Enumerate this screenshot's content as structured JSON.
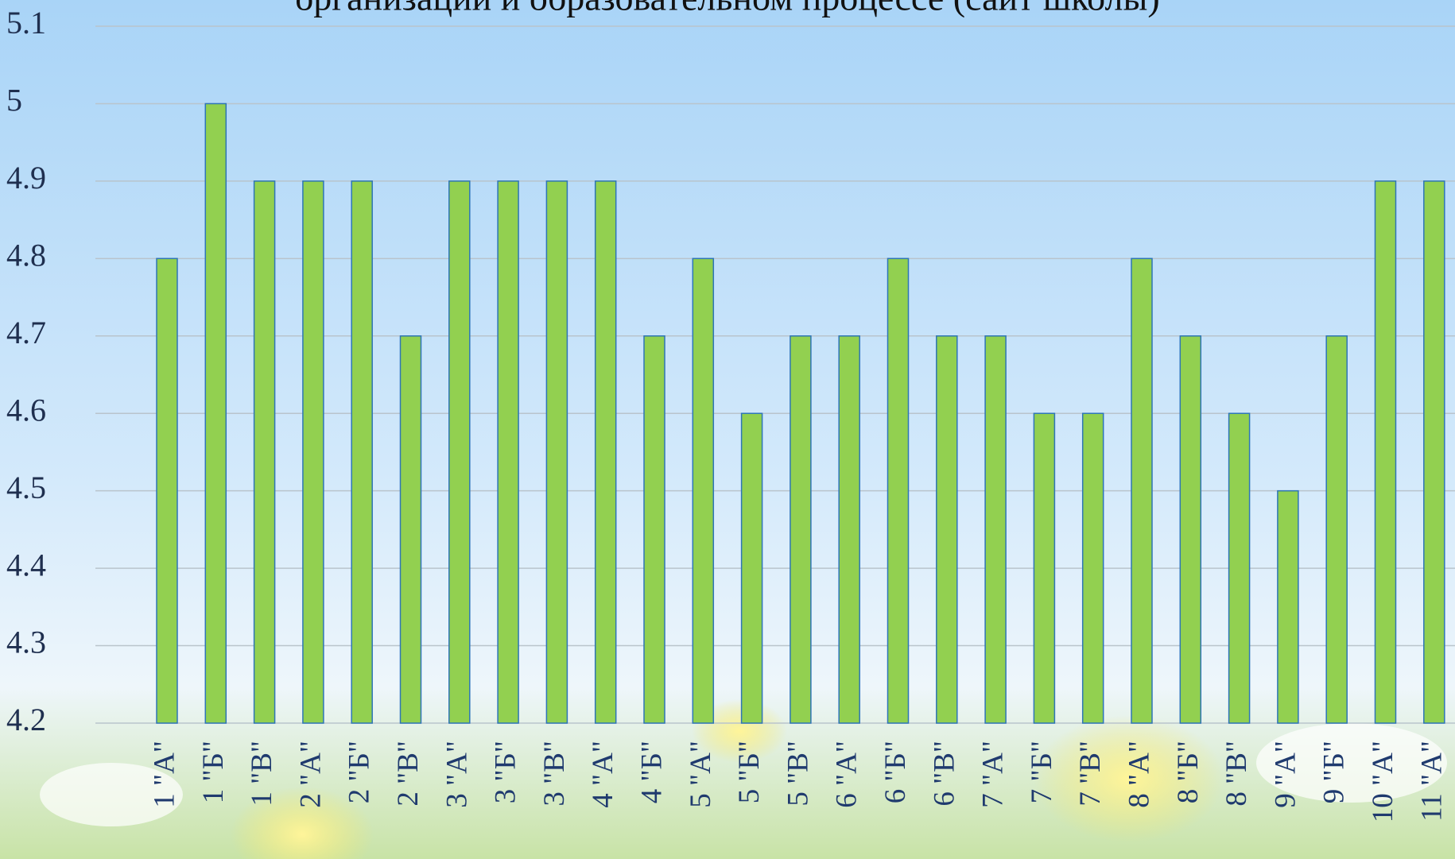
{
  "chart_data": {
    "type": "bar",
    "title": "организации и образовательном процессе (сайт школы)",
    "categories": [
      "1 \"А\"",
      "1 \"Б\"",
      "1 \"В\"",
      "2 \"А\"",
      "2 \"Б\"",
      "2 \"В\"",
      "3 \"А\"",
      "3 \"Б\"",
      "3 \"В\"",
      "4 \"А\"",
      "4 \"Б\"",
      "5 \"А\"",
      "5 \"Б\"",
      "5 \"В\"",
      "6 \"А\"",
      "6 \"Б\"",
      "6 \"В\"",
      "7 \"А\"",
      "7 \"Б\"",
      "7 \"В\"",
      "8 \"А\"",
      "8 \"Б\"",
      "8 \"В\"",
      "9 \"А\"",
      "9 \"Б\"",
      "10 \"А\"",
      "11 \"А\""
    ],
    "values": [
      4.8,
      5,
      4.9,
      4.9,
      4.9,
      4.7,
      4.9,
      4.9,
      4.9,
      4.9,
      4.7,
      4.8,
      4.6,
      4.7,
      4.7,
      4.8,
      4.7,
      4.7,
      4.6,
      4.6,
      4.8,
      4.7,
      4.6,
      4.5,
      4.7,
      4.9,
      4.9
    ],
    "color": "#92d050",
    "ylim": [
      4.2,
      5.1
    ],
    "yticks": [
      4.2,
      4.3,
      4.4,
      4.5,
      4.6,
      4.7,
      4.8,
      4.9,
      5,
      5.1
    ],
    "grid": true
  }
}
